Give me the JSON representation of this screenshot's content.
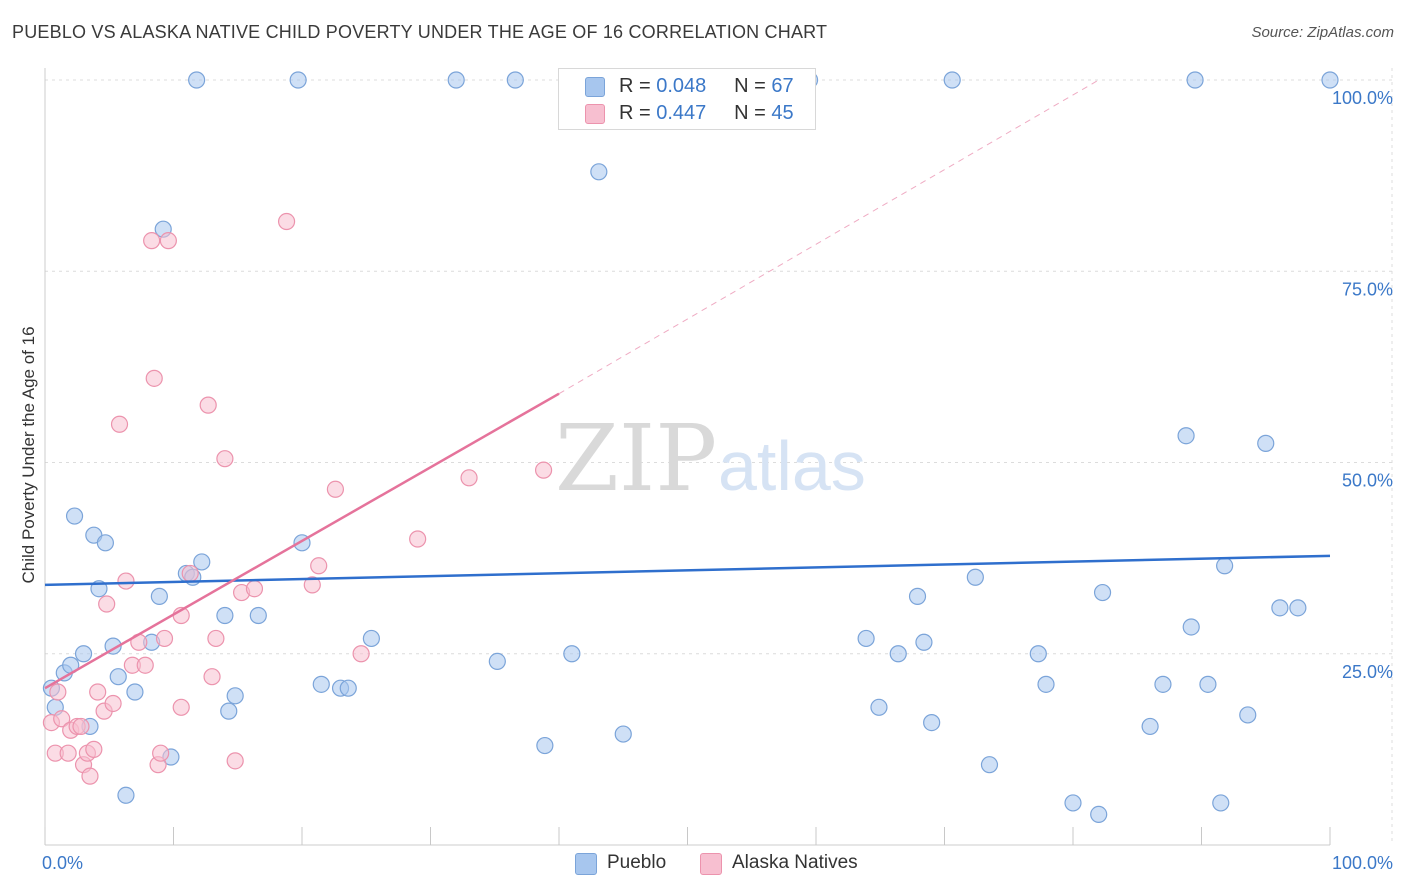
{
  "title": "PUEBLO VS ALASKA NATIVE CHILD POVERTY UNDER THE AGE OF 16 CORRELATION CHART",
  "source": "Source: ZipAtlas.com",
  "watermark": {
    "zip": "ZIP",
    "atlas": "atlas"
  },
  "legend": {
    "rows": [
      {
        "r_label": "R = ",
        "r_value": "0.048",
        "n_label": "N = ",
        "n_value": "67",
        "color": "#a7c6ee",
        "border": "#7ba4d9"
      },
      {
        "r_label": "R = ",
        "r_value": "0.447",
        "n_label": "N = ",
        "n_value": "45",
        "color": "#f7bfd0",
        "border": "#ec93ad"
      }
    ]
  },
  "bottom_legend": [
    {
      "label": "Pueblo",
      "color": "#a7c6ee",
      "border": "#7ba4d9"
    },
    {
      "label": "Alaska Natives",
      "color": "#f7bfd0",
      "border": "#ec93ad"
    }
  ],
  "chart_data": {
    "type": "scatter",
    "title": "PUEBLO VS ALASKA NATIVE CHILD POVERTY UNDER THE AGE OF 16 CORRELATION CHART",
    "xlabel": "",
    "ylabel": "Child Poverty Under the Age of 16",
    "xlim": [
      0,
      100
    ],
    "ylim": [
      0,
      100
    ],
    "x_tick_labels": [
      {
        "value": 0,
        "label": "0.0%"
      },
      {
        "value": 100,
        "label": "100.0%"
      }
    ],
    "y_tick_labels": [
      {
        "value": 25,
        "label": "25.0%"
      },
      {
        "value": 50,
        "label": "50.0%"
      },
      {
        "value": 75,
        "label": "75.0%"
      },
      {
        "value": 100,
        "label": "100.0%"
      }
    ],
    "grid": "horizontal dashed",
    "series": [
      {
        "name": "Pueblo",
        "color": "#a7c6ee",
        "stroke": "#7ba4d9",
        "trend": {
          "x0": 0,
          "y0": 34.0,
          "x1": 100,
          "y1": 37.8,
          "color": "#2f6fcd"
        },
        "points": [
          [
            0.5,
            20.5
          ],
          [
            0.8,
            18.0
          ],
          [
            1.5,
            22.5
          ],
          [
            2.0,
            23.5
          ],
          [
            2.3,
            43.0
          ],
          [
            3.0,
            25.0
          ],
          [
            3.5,
            15.5
          ],
          [
            3.8,
            40.5
          ],
          [
            4.2,
            33.5
          ],
          [
            4.7,
            39.5
          ],
          [
            5.3,
            26.0
          ],
          [
            5.7,
            22.0
          ],
          [
            6.3,
            6.5
          ],
          [
            7.0,
            20.0
          ],
          [
            8.3,
            26.5
          ],
          [
            8.9,
            32.5
          ],
          [
            9.2,
            80.5
          ],
          [
            9.8,
            11.5
          ],
          [
            11.0,
            35.5
          ],
          [
            11.5,
            35.0
          ],
          [
            12.2,
            37.0
          ],
          [
            11.8,
            100
          ],
          [
            14.0,
            30.0
          ],
          [
            14.3,
            17.5
          ],
          [
            14.8,
            19.5
          ],
          [
            16.6,
            30.0
          ],
          [
            19.7,
            100
          ],
          [
            20.0,
            39.5
          ],
          [
            21.5,
            21.0
          ],
          [
            23.0,
            20.5
          ],
          [
            23.6,
            20.5
          ],
          [
            25.4,
            27.0
          ],
          [
            32.0,
            100
          ],
          [
            35.2,
            24.0
          ],
          [
            36.6,
            100
          ],
          [
            38.9,
            13.0
          ],
          [
            41.0,
            25.0
          ],
          [
            43.1,
            88.0
          ],
          [
            45.0,
            14.5
          ],
          [
            59.5,
            100
          ],
          [
            63.9,
            27.0
          ],
          [
            64.9,
            18.0
          ],
          [
            66.4,
            25.0
          ],
          [
            67.9,
            32.5
          ],
          [
            68.4,
            26.5
          ],
          [
            69.0,
            16.0
          ],
          [
            70.6,
            100
          ],
          [
            72.4,
            35.0
          ],
          [
            73.5,
            10.5
          ],
          [
            77.3,
            25.0
          ],
          [
            77.9,
            21.0
          ],
          [
            80.0,
            5.5
          ],
          [
            82.0,
            4.0
          ],
          [
            82.3,
            33.0
          ],
          [
            86.0,
            15.5
          ],
          [
            87.0,
            21.0
          ],
          [
            88.8,
            53.5
          ],
          [
            89.2,
            28.5
          ],
          [
            89.5,
            100
          ],
          [
            90.5,
            21.0
          ],
          [
            91.8,
            36.5
          ],
          [
            91.5,
            5.5
          ],
          [
            93.6,
            17.0
          ],
          [
            95.0,
            52.5
          ],
          [
            96.1,
            31.0
          ],
          [
            97.5,
            31.0
          ],
          [
            100,
            100
          ]
        ]
      },
      {
        "name": "Alaska Natives",
        "color": "#f7bfd0",
        "stroke": "#ec93ad",
        "trend": {
          "x0": 0,
          "y0": 20.5,
          "x1": 40,
          "y1": 59.0,
          "dash_x1": 82,
          "dash_y1": 100,
          "color": "#e5739b"
        },
        "points": [
          [
            0.5,
            16.0
          ],
          [
            0.8,
            12.0
          ],
          [
            1.0,
            20.0
          ],
          [
            1.3,
            16.5
          ],
          [
            1.8,
            12.0
          ],
          [
            2.0,
            15.0
          ],
          [
            2.5,
            15.5
          ],
          [
            2.8,
            15.5
          ],
          [
            3.0,
            10.5
          ],
          [
            3.3,
            12.0
          ],
          [
            3.5,
            9.0
          ],
          [
            3.8,
            12.5
          ],
          [
            4.1,
            20.0
          ],
          [
            4.6,
            17.5
          ],
          [
            4.8,
            31.5
          ],
          [
            5.3,
            18.5
          ],
          [
            5.8,
            55.0
          ],
          [
            6.3,
            34.5
          ],
          [
            6.8,
            23.5
          ],
          [
            7.3,
            26.5
          ],
          [
            7.8,
            23.5
          ],
          [
            8.3,
            79.0
          ],
          [
            8.8,
            10.5
          ],
          [
            9.0,
            12.0
          ],
          [
            8.5,
            61.0
          ],
          [
            9.3,
            27.0
          ],
          [
            9.6,
            79.0
          ],
          [
            10.6,
            18.0
          ],
          [
            10.6,
            30.0
          ],
          [
            11.3,
            35.5
          ],
          [
            12.7,
            57.5
          ],
          [
            13.0,
            22.0
          ],
          [
            13.3,
            27.0
          ],
          [
            14.0,
            50.5
          ],
          [
            14.8,
            11.0
          ],
          [
            15.3,
            33.0
          ],
          [
            16.3,
            33.5
          ],
          [
            18.8,
            81.5
          ],
          [
            20.8,
            34.0
          ],
          [
            21.3,
            36.5
          ],
          [
            22.6,
            46.5
          ],
          [
            24.6,
            25.0
          ],
          [
            29.0,
            40.0
          ],
          [
            33.0,
            48.0
          ],
          [
            38.8,
            49.0
          ]
        ]
      }
    ]
  }
}
